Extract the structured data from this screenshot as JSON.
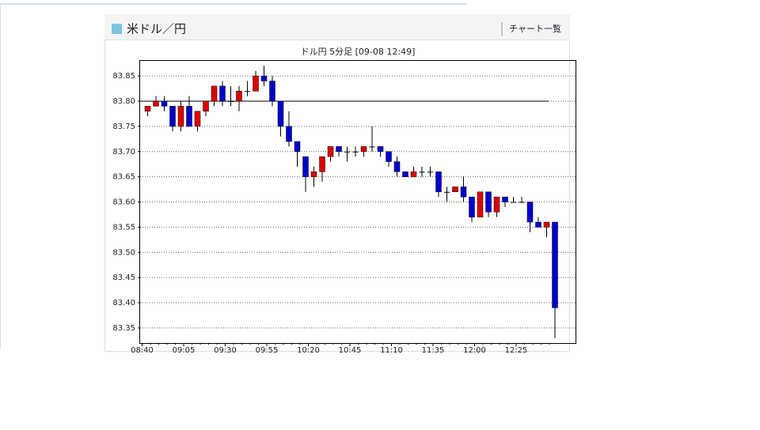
{
  "header": {
    "title": "米ドル／円",
    "link": "チャート一覧"
  },
  "chart_data": {
    "type": "candlestick",
    "title": "ドル円 5分足 [09-08 12:49]",
    "categories": [
      "08:40",
      null,
      null,
      null,
      null,
      "09:05",
      null,
      null,
      null,
      null,
      "09:30",
      null,
      null,
      null,
      null,
      "09:55",
      null,
      null,
      null,
      null,
      "10:20",
      null,
      null,
      null,
      null,
      "10:45",
      null,
      null,
      null,
      null,
      "11:10",
      null,
      null,
      null,
      null,
      "11:35",
      null,
      null,
      null,
      null,
      "12:00",
      null,
      null,
      null,
      null,
      "12:25",
      null,
      null,
      null,
      null
    ],
    "open": [
      83.78,
      83.79,
      83.8,
      83.79,
      83.75,
      83.79,
      83.75,
      83.78,
      83.8,
      83.83,
      83.8,
      83.8,
      83.82,
      83.82,
      83.85,
      83.84,
      83.8,
      83.75,
      83.72,
      83.69,
      83.65,
      83.66,
      83.69,
      83.71,
      83.7,
      83.7,
      83.7,
      83.71,
      83.71,
      83.7,
      83.68,
      83.66,
      83.65,
      83.66,
      83.66,
      83.66,
      83.62,
      83.62,
      83.63,
      83.61,
      83.57,
      83.62,
      83.58,
      83.61,
      83.6,
      83.6,
      83.6,
      83.56,
      83.55,
      83.56
    ],
    "high": [
      83.79,
      83.81,
      83.81,
      83.79,
      83.8,
      83.81,
      83.78,
      83.8,
      83.83,
      83.84,
      83.83,
      83.83,
      83.84,
      83.86,
      83.87,
      83.85,
      83.8,
      83.78,
      83.72,
      83.69,
      83.67,
      83.69,
      83.71,
      83.71,
      83.71,
      83.71,
      83.71,
      83.75,
      83.71,
      83.7,
      83.69,
      83.66,
      83.67,
      83.67,
      83.67,
      83.66,
      83.63,
      83.63,
      83.65,
      83.61,
      83.62,
      83.62,
      83.61,
      83.61,
      83.61,
      83.61,
      83.6,
      83.57,
      83.56,
      83.56
    ],
    "low": [
      83.77,
      83.79,
      83.78,
      83.74,
      83.74,
      83.75,
      83.74,
      83.77,
      83.79,
      83.79,
      83.79,
      83.78,
      83.81,
      83.82,
      83.83,
      83.79,
      83.73,
      83.71,
      83.67,
      83.62,
      83.63,
      83.64,
      83.68,
      83.69,
      83.68,
      83.69,
      83.69,
      83.7,
      83.69,
      83.67,
      83.65,
      83.65,
      83.65,
      83.65,
      83.65,
      83.61,
      83.6,
      83.62,
      83.6,
      83.56,
      83.57,
      83.57,
      83.57,
      83.59,
      83.6,
      83.6,
      83.54,
      83.55,
      83.53,
      83.33
    ],
    "close": [
      83.79,
      83.8,
      83.79,
      83.75,
      83.79,
      83.75,
      83.78,
      83.8,
      83.83,
      83.8,
      83.8,
      83.82,
      83.82,
      83.85,
      83.84,
      83.8,
      83.75,
      83.72,
      83.7,
      83.65,
      83.66,
      83.69,
      83.71,
      83.7,
      83.7,
      83.7,
      83.71,
      83.71,
      83.7,
      83.68,
      83.66,
      83.65,
      83.66,
      83.66,
      83.66,
      83.62,
      83.62,
      83.63,
      83.61,
      83.57,
      83.62,
      83.58,
      83.61,
      83.6,
      83.6,
      83.6,
      83.56,
      83.55,
      83.56,
      83.39
    ],
    "up_color": "#dd0000",
    "down_color": "#0000cc",
    "reference": 83.8,
    "ylim": [
      83.32,
      83.88
    ],
    "yticks": [
      83.35,
      {
        "value": 83.4,
        "label": "83.40"
      },
      83.45,
      {
        "value": 83.5,
        "label": "83.50"
      },
      83.55,
      {
        "value": 83.6,
        "label": "83.60"
      },
      83.65,
      {
        "value": 83.7,
        "label": "83.70"
      },
      83.75,
      {
        "value": 83.8,
        "label": "83.80"
      },
      83.85
    ],
    "grid": true
  }
}
